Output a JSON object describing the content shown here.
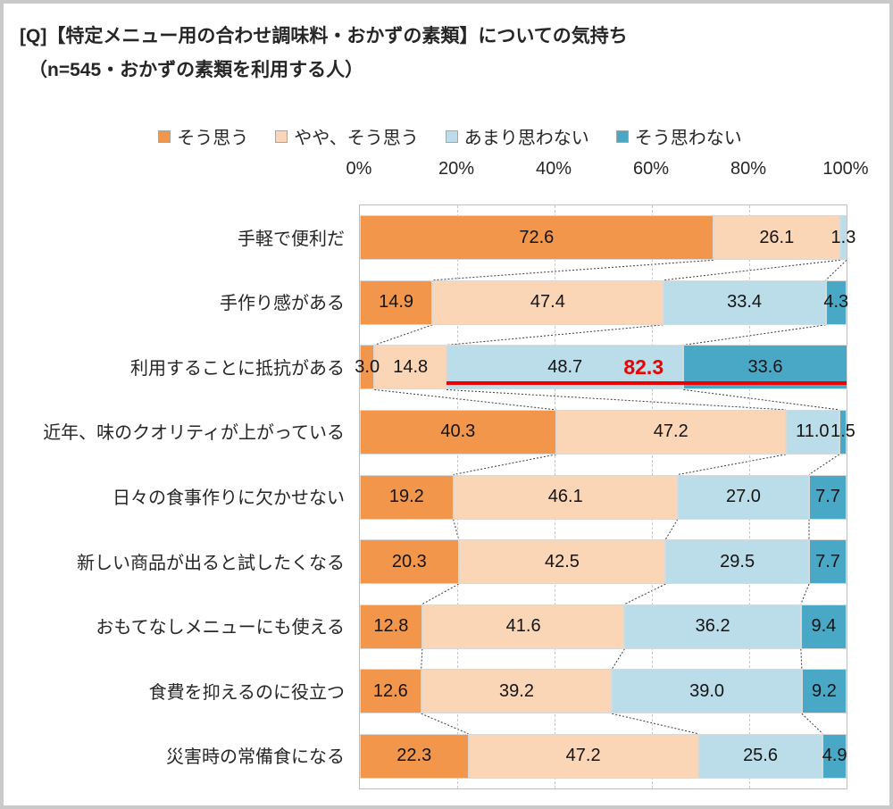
{
  "title": "[Q]【特定メニュー用の合わせ調味料・おかずの素類】についての気持ち",
  "subtitle": "（n=545・おかずの素類を利用する人）",
  "axis": {
    "ticks": [
      "0%",
      "20%",
      "40%",
      "60%",
      "80%",
      "100%"
    ]
  },
  "colors": {
    "agree": "#F1964A",
    "somewhat_agree": "#FAD6B7",
    "not_really": "#BADDE9",
    "disagree": "#49A8C5",
    "annotation_red": "#EE0000",
    "gridline": "#C9C9C9",
    "plot_border": "#BFBFBF",
    "segment_border": "#D9D9D9"
  },
  "chart_data": {
    "type": "bar",
    "stacked": true,
    "orientation": "horizontal",
    "xlim": [
      0,
      100
    ],
    "grid": true,
    "legend_position": "top",
    "categories": [
      "手軽で便利だ",
      "手作り感がある",
      "利用することに抵抗がある",
      "近年、味のクオリティが上がっている",
      "日々の食事作りに欠かせない",
      "新しい商品が出ると試したくなる",
      "おもてなしメニューにも使える",
      "食費を抑えるのに役立つ",
      "災害時の常備食になる"
    ],
    "series": [
      {
        "name": "そう思う",
        "color": "#F1964A",
        "values": [
          72.6,
          14.9,
          3.0,
          40.3,
          19.2,
          20.3,
          12.8,
          12.6,
          22.3
        ]
      },
      {
        "name": "やや、そう思う",
        "color": "#FAD6B7",
        "values": [
          26.1,
          47.4,
          14.8,
          47.2,
          46.1,
          42.5,
          41.6,
          39.2,
          47.2
        ]
      },
      {
        "name": "あまり思わない",
        "color": "#BADDE9",
        "values": [
          1.3,
          33.4,
          48.7,
          11.0,
          27.0,
          29.5,
          36.2,
          39.0,
          25.6
        ]
      },
      {
        "name": "そう思わない",
        "color": "#49A8C5",
        "values": [
          0.0,
          4.3,
          33.6,
          1.5,
          7.7,
          7.7,
          9.4,
          9.2,
          4.9
        ]
      }
    ],
    "annotation": {
      "row_index": 2,
      "text": "82.3",
      "color": "#EE0000",
      "underline_from": 17.8,
      "underline_to": 100,
      "text_center_pct": 58.3
    }
  }
}
